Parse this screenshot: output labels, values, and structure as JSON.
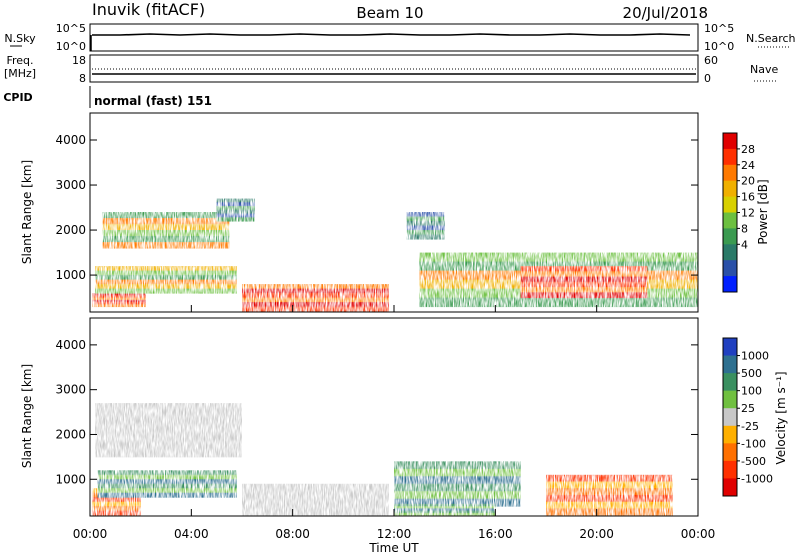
{
  "header": {
    "station": "Inuvik (fitACF)",
    "beam": "Beam 10",
    "date": "20/Jul/2018"
  },
  "summary_panels": {
    "nsky_label": "N.Sky",
    "nsky_ticks": [
      "10^5",
      "10^0"
    ],
    "nsearch_label": "N.Search",
    "nsearch_ticks": [
      "10^5",
      "10^0"
    ],
    "freq_label": "Freq.",
    "freq_unit": "[MHz]",
    "freq_ticks": [
      "18",
      "8"
    ],
    "nave_label": "Nave",
    "nave_ticks": [
      "60",
      "0"
    ],
    "cpid_label": "CPID",
    "cpid_value": "normal (fast) 151"
  },
  "chart_data": [
    {
      "type": "heatmap",
      "name": "power",
      "xlabel": "",
      "ylabel": "Slant Range [km]",
      "ylim": [
        180,
        4600
      ],
      "xlim": [
        0,
        24
      ],
      "yticks": [
        "1000",
        "2000",
        "3000",
        "4000"
      ],
      "colorbar": {
        "label": "Power [dB]",
        "ticks": [
          "28",
          "24",
          "20",
          "16",
          "12",
          "8",
          "4"
        ],
        "colors": [
          "#e00000",
          "#ff3000",
          "#ff7a00",
          "#f0b000",
          "#d8d000",
          "#6cc040",
          "#3a9a50",
          "#2a7a68",
          "#2a50a8",
          "#0020ff"
        ]
      },
      "regions": [
        {
          "x": [
            0.1,
            2.2
          ],
          "y": [
            300,
            600
          ],
          "level": "high"
        },
        {
          "x": [
            0.2,
            5.8
          ],
          "y": [
            600,
            1200
          ],
          "level": "mid"
        },
        {
          "x": [
            6.0,
            11.8
          ],
          "y": [
            200,
            800
          ],
          "level": "high"
        },
        {
          "x": [
            0.5,
            5.5
          ],
          "y": [
            1600,
            2400
          ],
          "level": "mid"
        },
        {
          "x": [
            5.0,
            6.5
          ],
          "y": [
            2200,
            2700
          ],
          "level": "low"
        },
        {
          "x": [
            12.5,
            14.0
          ],
          "y": [
            1800,
            2400
          ],
          "level": "low"
        },
        {
          "x": [
            13.0,
            24.0
          ],
          "y": [
            300,
            1500
          ],
          "level": "mid"
        },
        {
          "x": [
            17.0,
            22.0
          ],
          "y": [
            500,
            1200
          ],
          "level": "high"
        }
      ]
    },
    {
      "type": "heatmap",
      "name": "velocity",
      "xlabel": "Time UT",
      "ylabel": "Slant Range [km]",
      "ylim": [
        180,
        4600
      ],
      "xlim": [
        0,
        24
      ],
      "yticks": [
        "1000",
        "2000",
        "3000",
        "4000"
      ],
      "xticks": [
        "00:00",
        "04:00",
        "08:00",
        "12:00",
        "16:00",
        "20:00",
        "00:00"
      ],
      "colorbar": {
        "label": "Velocity [m s⁻¹]",
        "ticks": [
          "1000",
          "500",
          "100",
          "25",
          "-25",
          "-100",
          "-500",
          "-1000"
        ],
        "colors": [
          "#2040c0",
          "#2e7090",
          "#3a9060",
          "#70c040",
          "#c8c8c8",
          "#ffb000",
          "#ff7000",
          "#ff3000",
          "#e00000"
        ]
      },
      "regions": [
        {
          "x": [
            0.1,
            2.0
          ],
          "y": [
            200,
            800
          ],
          "level": "neg"
        },
        {
          "x": [
            0.3,
            5.8
          ],
          "y": [
            600,
            1200
          ],
          "level": "pos"
        },
        {
          "x": [
            0.2,
            6.0
          ],
          "y": [
            1500,
            2700
          ],
          "level": "zero"
        },
        {
          "x": [
            6.0,
            11.8
          ],
          "y": [
            200,
            900
          ],
          "level": "zero"
        },
        {
          "x": [
            12.0,
            17.0
          ],
          "y": [
            400,
            1400
          ],
          "level": "pos"
        },
        {
          "x": [
            18.0,
            23.0
          ],
          "y": [
            200,
            1100
          ],
          "level": "neg"
        },
        {
          "x": [
            12.0,
            16.0
          ],
          "y": [
            200,
            500
          ],
          "level": "pos"
        }
      ]
    }
  ]
}
